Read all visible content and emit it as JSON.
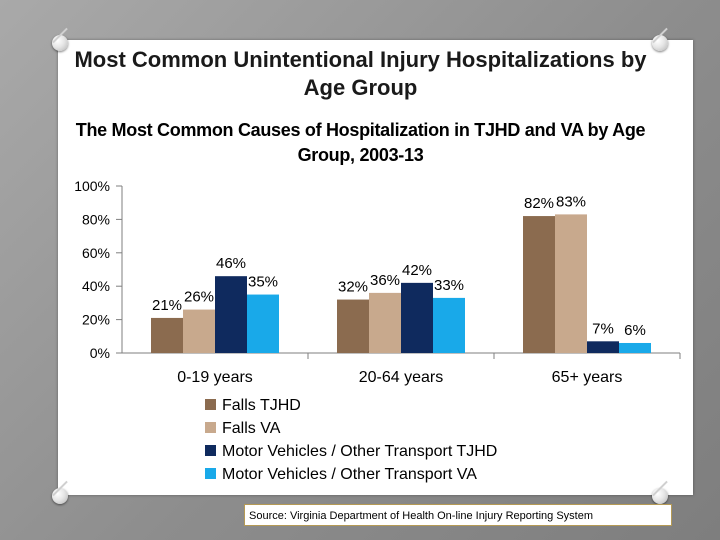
{
  "title": "Most Common Unintentional Injury Hospitalizations by Age Group",
  "source": "Source: Virginia Department of Health On-line Injury Reporting System",
  "chart_data": {
    "type": "bar",
    "title": "The Most Common Causes of Hospitalization in TJHD and VA by Age Group, 2003-13",
    "categories": [
      "0-19 years",
      "20-64 years",
      "65+ years"
    ],
    "series": [
      {
        "name": "Falls TJHD",
        "values": [
          21,
          32,
          82
        ],
        "color": "#8b6b4f"
      },
      {
        "name": "Falls VA",
        "values": [
          26,
          36,
          83
        ],
        "color": "#c8a98d"
      },
      {
        "name": "Motor Vehicles / Other Transport TJHD",
        "values": [
          46,
          42,
          7
        ],
        "color": "#0f2a5e"
      },
      {
        "name": "Motor Vehicles / Other Transport VA",
        "values": [
          35,
          33,
          6
        ],
        "color": "#19a9e9"
      }
    ],
    "y_ticks": [
      "0%",
      "20%",
      "40%",
      "60%",
      "80%",
      "100%"
    ],
    "ylim": [
      0,
      100
    ],
    "value_suffix": "%",
    "legend_position": "bottom",
    "xlabel": "",
    "ylabel": ""
  }
}
